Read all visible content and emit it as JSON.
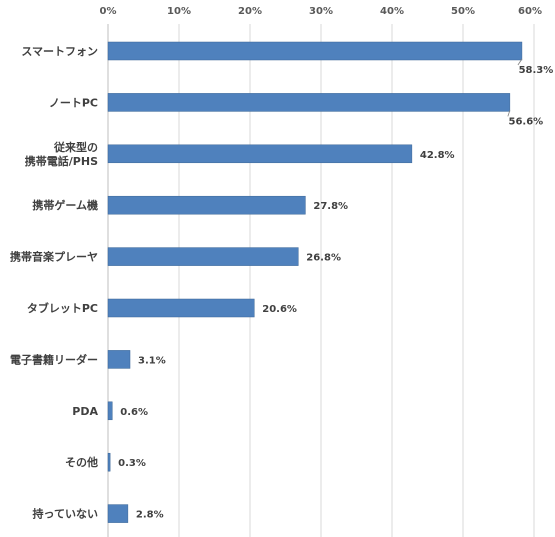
{
  "chart_data": {
    "type": "bar",
    "orientation": "horizontal",
    "categories": [
      [
        "スマートフォン"
      ],
      [
        "ノートPC"
      ],
      [
        "従来型の",
        "携帯電話/PHS"
      ],
      [
        "携帯ゲーム機"
      ],
      [
        "携帯音楽プレーヤ"
      ],
      [
        "タブレットPC"
      ],
      [
        "電子書籍リーダー"
      ],
      [
        "PDA"
      ],
      [
        "その他"
      ],
      [
        "持っていない"
      ]
    ],
    "values": [
      58.3,
      56.6,
      42.8,
      27.8,
      26.8,
      20.6,
      3.1,
      0.6,
      0.3,
      2.8
    ],
    "value_labels": [
      "58.3%",
      "56.6%",
      "42.8%",
      "27.8%",
      "26.8%",
      "20.6%",
      "3.1%",
      "0.6%",
      "0.3%",
      "2.8%"
    ],
    "x_ticks": [
      "0%",
      "10%",
      "20%",
      "30%",
      "40%",
      "50%",
      "60%"
    ],
    "xlim": [
      0,
      60
    ],
    "x_axis_position": "top",
    "grid": true,
    "legend": "none",
    "colors": {
      "bar": "#4f81bd",
      "grid": "#d9d9d9"
    }
  }
}
